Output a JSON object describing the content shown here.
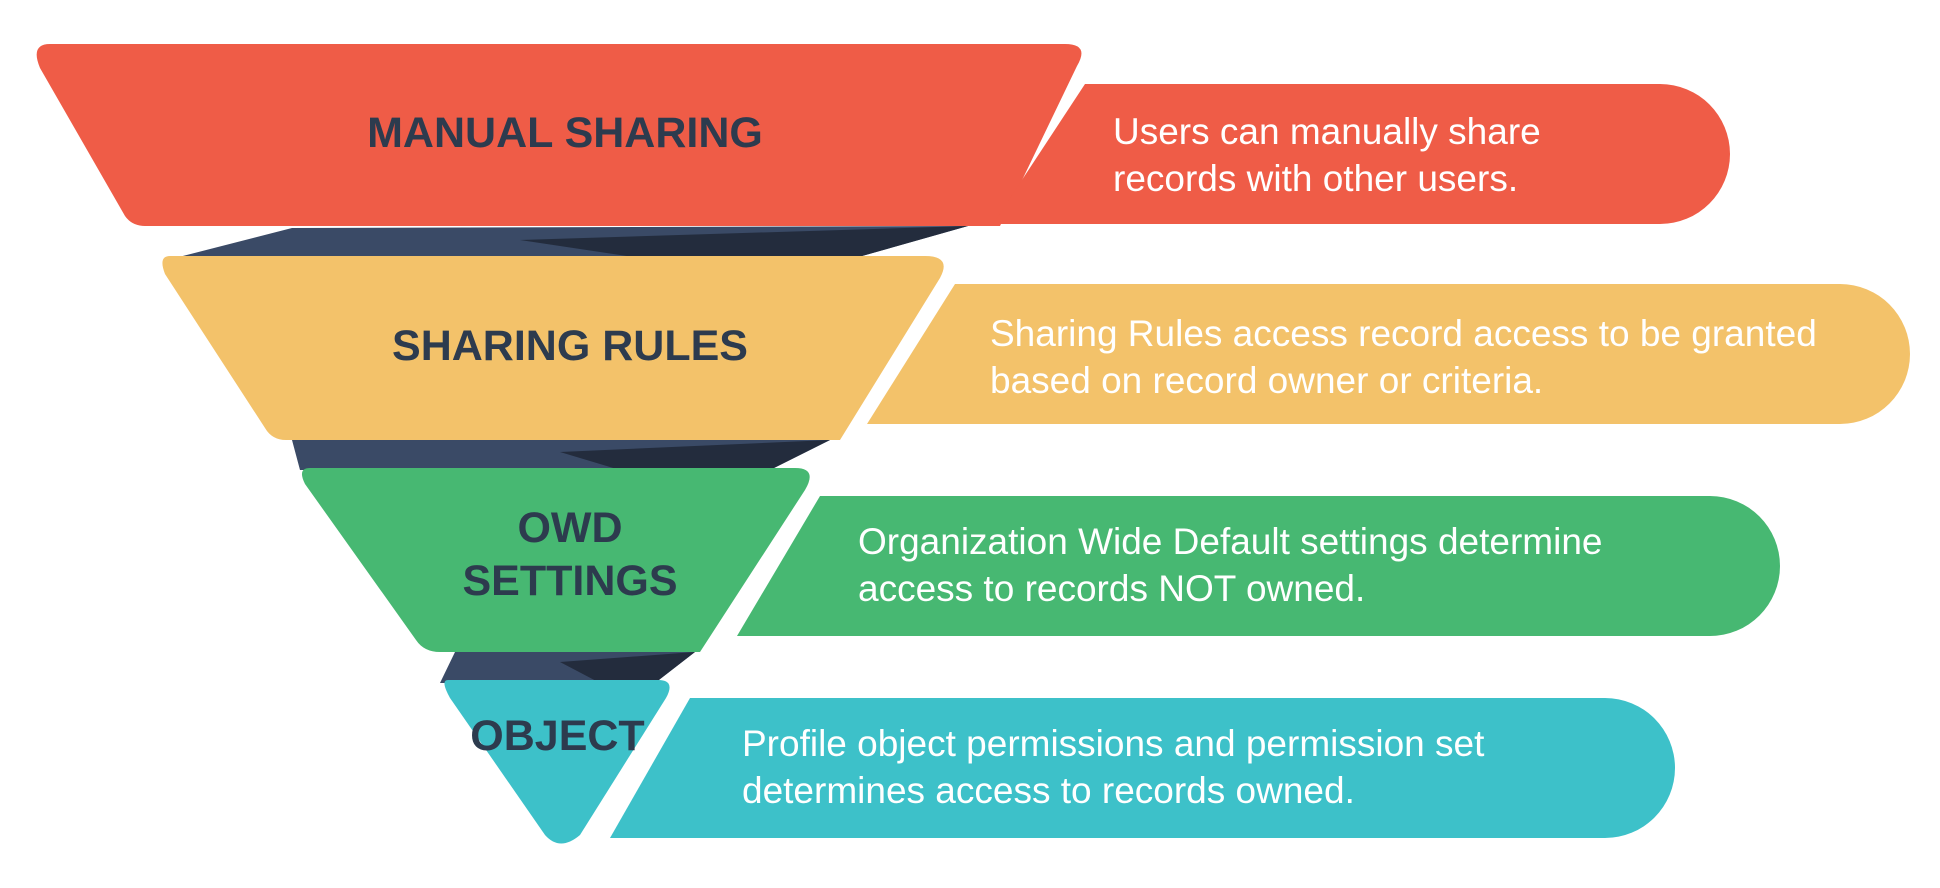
{
  "colors": {
    "manual_sharing": "#ef5c47",
    "sharing_rules": "#f3c26a",
    "owd_settings": "#47b872",
    "object": "#3dc1c9",
    "connector_light": "#3a4a66",
    "connector_dark": "#232c3d",
    "label_text": "#2d3b4e",
    "description_text": "#ffffff"
  },
  "levels": [
    {
      "key": "manual_sharing",
      "label": "MANUAL SHARING",
      "description": "Users can manually share\nrecords with other users."
    },
    {
      "key": "sharing_rules",
      "label": "SHARING RULES",
      "description": "Sharing Rules access record access to be granted\nbased on record owner or criteria."
    },
    {
      "key": "owd_settings",
      "label": "OWD\nSETTINGS",
      "description": "Organization Wide Default settings determine\naccess to records NOT owned."
    },
    {
      "key": "object",
      "label": "OBJECT",
      "description": "Profile object permissions and permission set\ndetermines access to records owned."
    }
  ]
}
